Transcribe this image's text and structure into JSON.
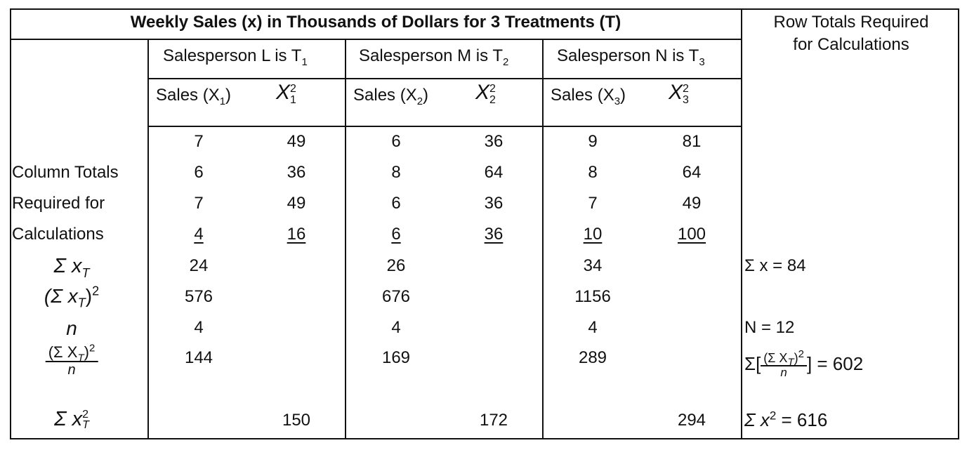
{
  "title": "Weekly Sales (x) in Thousands of Dollars for 3 Treatments (T)",
  "row_totals_header": [
    "Row Totals Required",
    "for Calculations"
  ],
  "salespersons": [
    {
      "label": "Salesperson  L is T",
      "sub": "1",
      "sales_label": "Sales (X",
      "sales_sub": "1",
      "sq_base": "X",
      "sq_sub": "1",
      "sq_sup": "2"
    },
    {
      "label": "Salesperson  M is T",
      "sub": "2",
      "sales_label": "Sales (X",
      "sales_sub": "2",
      "sq_base": "X",
      "sq_sub": "2",
      "sq_sup": "2"
    },
    {
      "label": "Salesperson  N is T",
      "sub": "3",
      "sales_label": "Sales (X",
      "sales_sub": "3",
      "sq_base": "X",
      "sq_sub": "3",
      "sq_sup": "2"
    }
  ],
  "left_labels": [
    "Column Totals",
    "Required for",
    "Calculations"
  ],
  "data_rows": [
    [
      "7",
      "49",
      "6",
      "36",
      "9",
      "81"
    ],
    [
      "6",
      "36",
      "8",
      "64",
      "8",
      "64"
    ],
    [
      "7",
      "49",
      "6",
      "36",
      "7",
      "49"
    ],
    [
      "4",
      "16",
      "6",
      "36",
      "10",
      "100"
    ]
  ],
  "stat_labels": {
    "sum_x": "Σ x",
    "sum_x_sub": "T",
    "sum_x_sq": "(Σ x",
    "sum_x_sq_sub": "T",
    "sum_x_sq_close": ")",
    "sum_x_sq_sup": "2",
    "n": "n",
    "frac_num": "(Σ X",
    "frac_num_sub": "T",
    "frac_num_close": ")",
    "frac_num_sup": "2",
    "frac_den": "n",
    "sumsq": "Σ x",
    "sumsq_sup": "2",
    "sumsq_sub": "T"
  },
  "stats": {
    "sum_x": [
      "24",
      "26",
      "34"
    ],
    "sum_x_sq": [
      "576",
      "676",
      "1156"
    ],
    "n": [
      "4",
      "4",
      "4"
    ],
    "frac": [
      "144",
      "169",
      "289"
    ],
    "sumsq": [
      "150",
      "172",
      "294"
    ]
  },
  "row_totals": {
    "sum_x": "Σ x = 84",
    "N": "N = 12",
    "frac_prefix": "Σ[",
    "frac_num": "(Σ X",
    "frac_num_sub": "T",
    "frac_num_close": ")",
    "frac_num_sup": "2",
    "frac_den": "n",
    "frac_suffix": "] = 602",
    "sumsq_prefix": "Σ x",
    "sumsq_sup": "2",
    "sumsq_suffix": " = 616"
  }
}
